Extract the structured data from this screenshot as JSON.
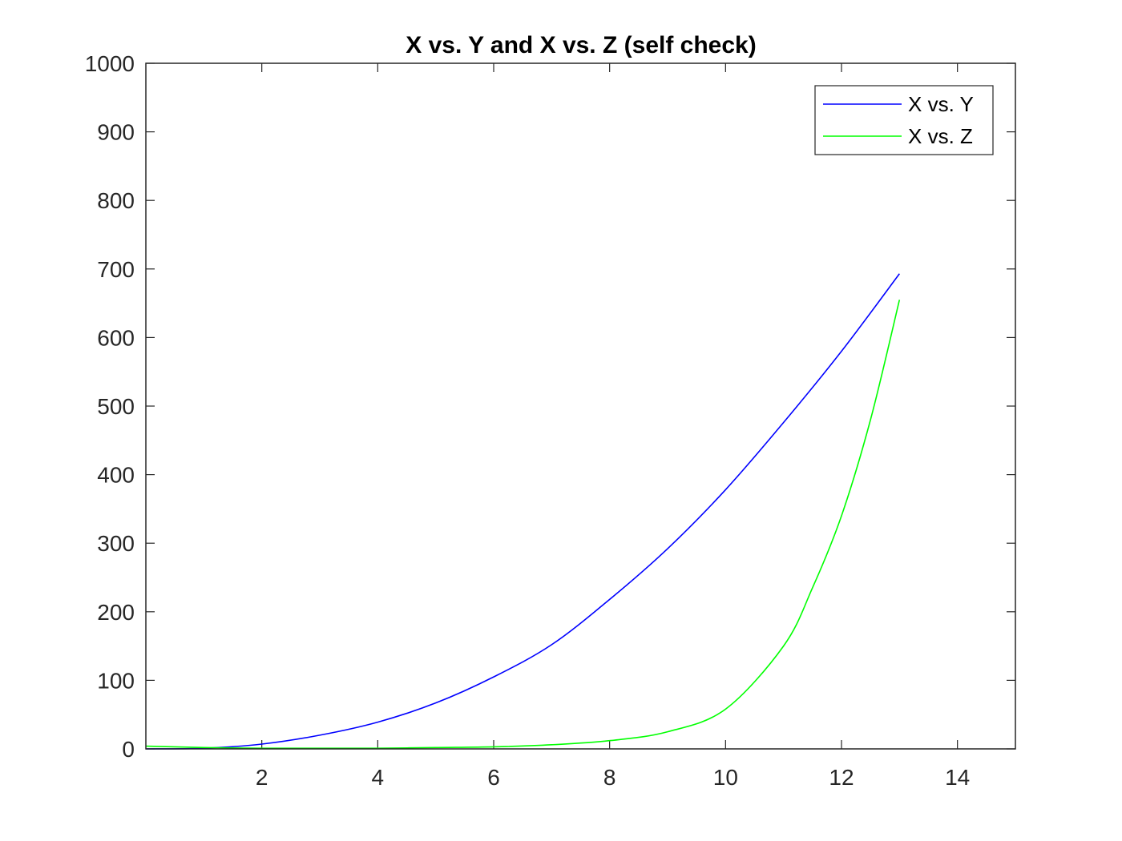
{
  "chart_data": {
    "type": "line",
    "title": "X vs. Y and X vs. Z (self check)",
    "xlabel": "",
    "ylabel": "",
    "xlim": [
      0,
      15
    ],
    "ylim": [
      0,
      1000
    ],
    "xticks": [
      2,
      4,
      6,
      8,
      10,
      12,
      14
    ],
    "yticks": [
      0,
      100,
      200,
      300,
      400,
      500,
      600,
      700,
      800,
      900,
      1000
    ],
    "grid": false,
    "legend_position": "top-right",
    "series": [
      {
        "name": "X vs. Y",
        "color": "#0000ff",
        "x": [
          0,
          1,
          2,
          3,
          4,
          5,
          6,
          7,
          8,
          9,
          10,
          11,
          12,
          13
        ],
        "y": [
          0,
          1,
          7,
          20,
          39,
          67,
          105,
          152,
          218,
          292,
          378,
          476,
          580,
          693
        ]
      },
      {
        "name": "X vs. Z",
        "color": "#00ff00",
        "x": [
          0,
          1,
          2,
          3,
          4,
          5,
          6,
          7,
          8,
          9,
          10,
          11,
          11.5,
          12,
          12.5,
          13
        ],
        "y": [
          4,
          2,
          1,
          1,
          1,
          2,
          3,
          6,
          12,
          25,
          58,
          150,
          235,
          340,
          480,
          655
        ]
      }
    ]
  }
}
